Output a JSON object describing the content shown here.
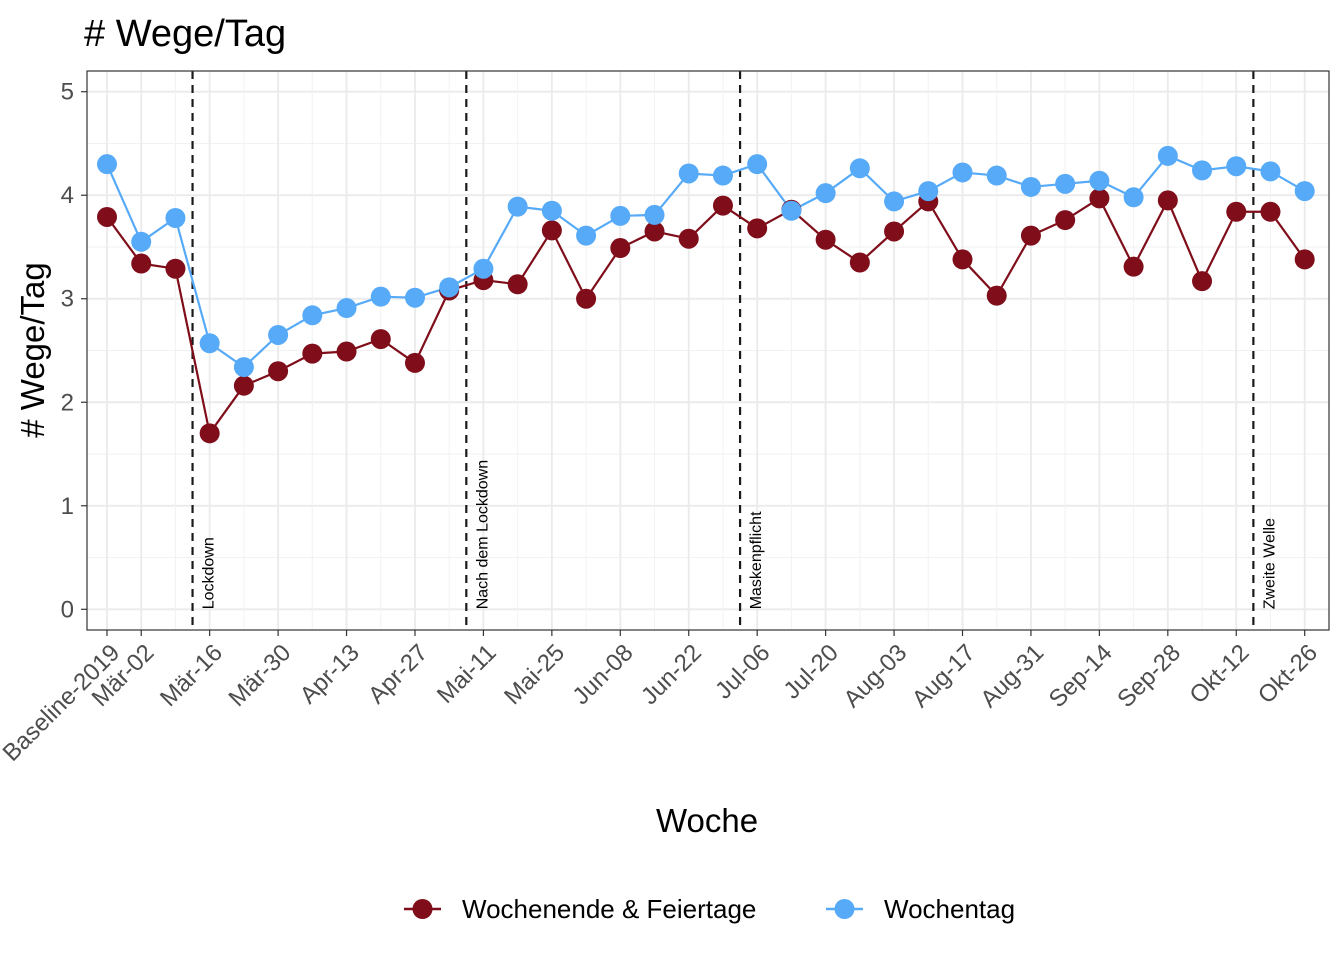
{
  "chart_data": {
    "type": "line",
    "title": "# Wege/Tag",
    "xlabel": "Woche",
    "ylabel": "# Wege/Tag",
    "ylim": [
      -0.2,
      5.2
    ],
    "y_ticks": [
      0,
      1,
      2,
      3,
      4,
      5
    ],
    "grid": true,
    "legend_position": "bottom",
    "categories": [
      "Baseline-2019",
      "Mär-02",
      "Mär-09",
      "Mär-16",
      "Mär-23",
      "Mär-30",
      "Apr-06",
      "Apr-13",
      "Apr-20",
      "Apr-27",
      "Mai-04",
      "Mai-11",
      "Mai-18",
      "Mai-25",
      "Jun-01",
      "Jun-08",
      "Jun-15",
      "Jun-22",
      "Jun-29",
      "Jul-06",
      "Jul-13",
      "Jul-20",
      "Jul-27",
      "Aug-03",
      "Aug-10",
      "Aug-17",
      "Aug-24",
      "Aug-31",
      "Sep-07",
      "Sep-14",
      "Sep-21",
      "Sep-28",
      "Okt-05",
      "Okt-12",
      "Okt-19",
      "Okt-26"
    ],
    "tick_labels": [
      "Baseline-2019",
      "Mär-02",
      "Mär-16",
      "Mär-30",
      "Apr-13",
      "Apr-27",
      "Mai-11",
      "Mai-25",
      "Jun-08",
      "Jun-22",
      "Jul-06",
      "Jul-20",
      "Aug-03",
      "Aug-17",
      "Aug-31",
      "Sep-14",
      "Sep-28",
      "Okt-12",
      "Okt-26"
    ],
    "series": [
      {
        "name": "Wochenende & Feiertage",
        "color": "#7f0e1a",
        "values": [
          3.79,
          3.34,
          3.29,
          1.7,
          2.16,
          2.3,
          2.47,
          2.49,
          2.61,
          2.38,
          3.08,
          3.18,
          3.14,
          3.66,
          3.0,
          3.49,
          3.65,
          3.58,
          3.9,
          3.68,
          3.86,
          3.57,
          3.35,
          3.65,
          3.94,
          3.38,
          3.03,
          3.61,
          3.76,
          3.97,
          3.31,
          3.95,
          3.17,
          3.84,
          3.84,
          3.38
        ]
      },
      {
        "name": "Wochentag",
        "color": "#56aaf7",
        "values": [
          4.3,
          3.55,
          3.78,
          2.57,
          2.34,
          2.65,
          2.84,
          2.91,
          3.02,
          3.01,
          3.11,
          3.29,
          3.89,
          3.85,
          3.61,
          3.8,
          3.81,
          4.21,
          4.19,
          4.3,
          3.85,
          4.02,
          4.26,
          3.94,
          4.04,
          4.22,
          4.19,
          4.08,
          4.11,
          4.14,
          3.98,
          4.38,
          4.24,
          4.28,
          4.23,
          4.04
        ]
      }
    ],
    "events": [
      {
        "label": "Lockdown",
        "at": "Mär-14"
      },
      {
        "label": "Nach dem Lockdown",
        "at": "Mai-09"
      },
      {
        "label": "Maskenpflicht",
        "at": "Jul-04"
      },
      {
        "label": "Zweite Welle",
        "at": "Okt-14"
      }
    ]
  }
}
